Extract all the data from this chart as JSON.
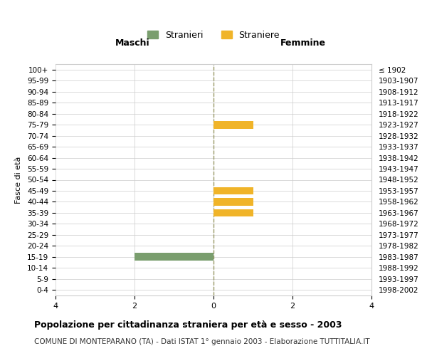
{
  "age_groups": [
    "0-4",
    "5-9",
    "10-14",
    "15-19",
    "20-24",
    "25-29",
    "30-34",
    "35-39",
    "40-44",
    "45-49",
    "50-54",
    "55-59",
    "60-64",
    "65-69",
    "70-74",
    "75-79",
    "80-84",
    "85-89",
    "90-94",
    "95-99",
    "100+"
  ],
  "birth_years": [
    "1998-2002",
    "1993-1997",
    "1988-1992",
    "1983-1987",
    "1978-1982",
    "1973-1977",
    "1968-1972",
    "1963-1967",
    "1958-1962",
    "1953-1957",
    "1948-1952",
    "1943-1947",
    "1938-1942",
    "1933-1937",
    "1928-1932",
    "1923-1927",
    "1918-1922",
    "1913-1917",
    "1908-1912",
    "1903-1907",
    "≤ 1902"
  ],
  "maschi": [
    0,
    0,
    0,
    2,
    0,
    0,
    0,
    0,
    0,
    0,
    0,
    0,
    0,
    0,
    0,
    0,
    0,
    0,
    0,
    0,
    0
  ],
  "femmine": [
    0,
    0,
    0,
    0,
    0,
    0,
    0,
    1,
    1,
    1,
    0,
    0,
    0,
    0,
    0,
    1,
    0,
    0,
    0,
    0,
    0
  ],
  "xlim": 4,
  "color_maschi": "#7a9e6e",
  "color_femmine": "#f0b429",
  "title": "Popolazione per cittadinanza straniera per età e sesso - 2003",
  "subtitle": "COMUNE DI MONTEPARANO (TA) - Dati ISTAT 1° gennaio 2003 - Elaborazione TUTTITALIA.IT",
  "ylabel_left": "Fasce di età",
  "legend_maschi": "Stranieri",
  "legend_femmine": "Straniere",
  "maschi_header": "Maschi",
  "femmine_header": "Femmine",
  "background_color": "#ffffff",
  "grid_color": "#cccccc",
  "bar_height": 0.7,
  "center_line_color": "#999966"
}
